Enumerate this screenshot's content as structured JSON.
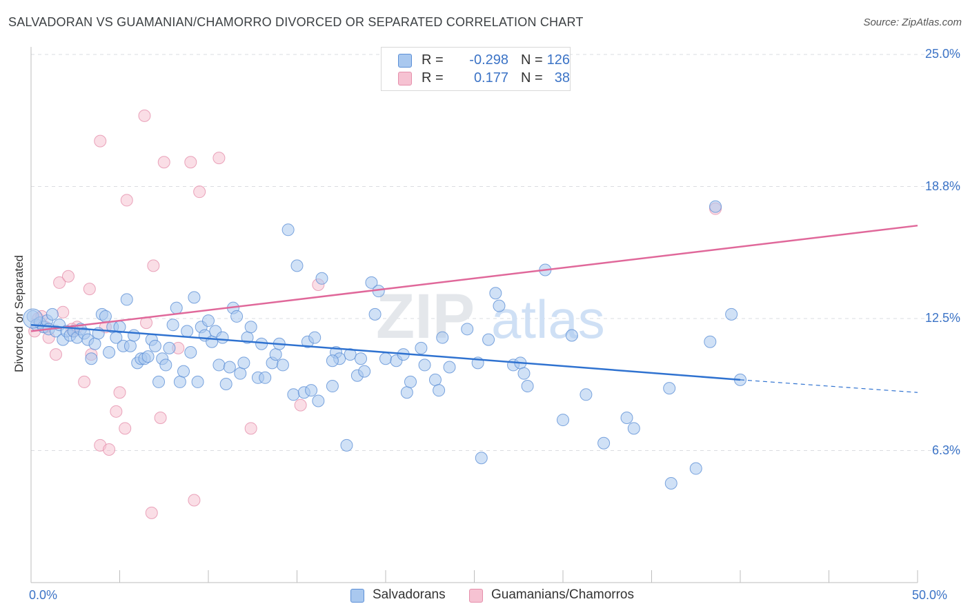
{
  "header": {
    "title": "SALVADORAN VS GUAMANIAN/CHAMORRO DIVORCED OR SEPARATED CORRELATION CHART",
    "source": "Source: ZipAtlas.com"
  },
  "legend": {
    "r_label": "R =",
    "n_label": "N =",
    "rows": [
      {
        "r": "-0.298",
        "n": "126",
        "color": "#a9c8ef"
      },
      {
        "r": "0.177",
        "n": "38",
        "color": "#f6b9cc"
      }
    ]
  },
  "watermark": {
    "zip": "ZIP",
    "atlas": "atlas"
  },
  "colors": {
    "blue_fill": "#a9c8ef",
    "blue_stroke": "#5b8fd6",
    "blue_line": "#2f72d0",
    "pink_fill": "#f6c2d2",
    "pink_stroke": "#e58fab",
    "pink_line": "#e0689a",
    "tick_text": "#3b73c6",
    "grid": "#dadce0"
  },
  "chart_data": {
    "type": "scatter",
    "title": "SALVADORAN VS GUAMANIAN/CHAMORRO DIVORCED OR SEPARATED CORRELATION CHART",
    "xlabel": "",
    "ylabel": "Divorced or Separated",
    "xlim": [
      0,
      50
    ],
    "ylim": [
      0,
      25
    ],
    "x_tick_labels": [
      "0.0%",
      "50.0%"
    ],
    "y_ticks": [
      6.25,
      12.5,
      18.75,
      25.0
    ],
    "y_tick_labels": [
      "6.3%",
      "12.5%",
      "18.8%",
      "25.0%"
    ],
    "grid": "horizontal dashed",
    "legend_position": "top-center and bottom",
    "series": [
      {
        "name": "Salvadorans",
        "r": -0.298,
        "n": 126,
        "trend": {
          "x0": 0,
          "y0": 12.2,
          "x1": 40,
          "y1": 9.6,
          "dashed_to_x": 50,
          "dashed_to_y": 9.0
        },
        "points": [
          [
            0.1,
            12.6
          ],
          [
            0.3,
            12.2
          ],
          [
            0.5,
            12.3
          ],
          [
            0.7,
            12.1
          ],
          [
            0.9,
            12.4
          ],
          [
            1.0,
            12.0
          ],
          [
            1.2,
            12.7
          ],
          [
            1.4,
            11.9
          ],
          [
            1.6,
            12.2
          ],
          [
            1.8,
            11.5
          ],
          [
            2.0,
            11.9
          ],
          [
            2.2,
            11.7
          ],
          [
            2.4,
            11.9
          ],
          [
            2.6,
            11.6
          ],
          [
            2.8,
            12.0
          ],
          [
            3.0,
            11.8
          ],
          [
            3.2,
            11.5
          ],
          [
            3.4,
            10.6
          ],
          [
            3.6,
            11.3
          ],
          [
            3.8,
            11.8
          ],
          [
            4.0,
            12.7
          ],
          [
            4.2,
            12.6
          ],
          [
            4.4,
            10.9
          ],
          [
            4.6,
            12.1
          ],
          [
            4.8,
            11.6
          ],
          [
            5.0,
            12.1
          ],
          [
            5.2,
            11.2
          ],
          [
            5.4,
            13.4
          ],
          [
            5.6,
            11.2
          ],
          [
            5.8,
            11.7
          ],
          [
            6.0,
            10.4
          ],
          [
            6.2,
            10.6
          ],
          [
            6.4,
            10.6
          ],
          [
            6.6,
            10.7
          ],
          [
            6.8,
            11.5
          ],
          [
            7.0,
            11.2
          ],
          [
            7.2,
            9.5
          ],
          [
            7.4,
            10.6
          ],
          [
            7.6,
            10.3
          ],
          [
            7.8,
            11.1
          ],
          [
            8.0,
            12.2
          ],
          [
            8.2,
            13.0
          ],
          [
            8.4,
            9.5
          ],
          [
            8.6,
            10.0
          ],
          [
            8.8,
            11.9
          ],
          [
            9.0,
            10.9
          ],
          [
            9.2,
            13.5
          ],
          [
            9.4,
            9.5
          ],
          [
            9.6,
            12.1
          ],
          [
            9.8,
            11.7
          ],
          [
            10.0,
            12.4
          ],
          [
            10.2,
            11.4
          ],
          [
            10.4,
            11.9
          ],
          [
            10.6,
            10.3
          ],
          [
            10.8,
            11.6
          ],
          [
            11.0,
            9.4
          ],
          [
            11.2,
            10.2
          ],
          [
            11.4,
            13.0
          ],
          [
            11.6,
            12.6
          ],
          [
            11.8,
            9.9
          ],
          [
            12.0,
            10.4
          ],
          [
            12.2,
            11.6
          ],
          [
            12.4,
            12.1
          ],
          [
            12.8,
            9.7
          ],
          [
            13.0,
            11.3
          ],
          [
            13.2,
            9.7
          ],
          [
            13.6,
            10.4
          ],
          [
            13.8,
            10.8
          ],
          [
            14.0,
            11.3
          ],
          [
            14.2,
            10.3
          ],
          [
            14.5,
            16.7
          ],
          [
            14.8,
            8.9
          ],
          [
            15.0,
            15.0
          ],
          [
            15.4,
            9.0
          ],
          [
            15.6,
            11.4
          ],
          [
            15.8,
            9.1
          ],
          [
            16.0,
            11.6
          ],
          [
            16.2,
            8.6
          ],
          [
            16.4,
            14.4
          ],
          [
            17.0,
            9.3
          ],
          [
            17.2,
            10.9
          ],
          [
            17.4,
            10.6
          ],
          [
            17.8,
            6.5
          ],
          [
            18.0,
            10.8
          ],
          [
            18.4,
            9.8
          ],
          [
            18.6,
            10.6
          ],
          [
            18.8,
            10.0
          ],
          [
            19.2,
            14.2
          ],
          [
            19.4,
            12.7
          ],
          [
            19.6,
            13.8
          ],
          [
            20.0,
            10.6
          ],
          [
            20.6,
            10.5
          ],
          [
            21.0,
            10.8
          ],
          [
            21.2,
            9.0
          ],
          [
            21.4,
            9.5
          ],
          [
            22.0,
            11.1
          ],
          [
            22.2,
            10.3
          ],
          [
            22.8,
            9.6
          ],
          [
            23.0,
            9.1
          ],
          [
            23.2,
            11.6
          ],
          [
            23.6,
            10.2
          ],
          [
            24.6,
            12.0
          ],
          [
            25.2,
            10.4
          ],
          [
            25.4,
            5.9
          ],
          [
            25.8,
            11.5
          ],
          [
            26.2,
            13.7
          ],
          [
            26.4,
            13.1
          ],
          [
            27.2,
            10.3
          ],
          [
            27.6,
            10.4
          ],
          [
            27.8,
            9.9
          ],
          [
            28.0,
            9.3
          ],
          [
            29.0,
            14.8
          ],
          [
            30.0,
            7.7
          ],
          [
            30.5,
            11.7
          ],
          [
            31.3,
            8.9
          ],
          [
            32.3,
            6.6
          ],
          [
            33.6,
            7.8
          ],
          [
            34.0,
            7.3
          ],
          [
            36.1,
            4.7
          ],
          [
            37.5,
            5.4
          ],
          [
            38.3,
            11.4
          ],
          [
            38.6,
            17.8
          ],
          [
            39.5,
            12.7
          ],
          [
            40.0,
            9.6
          ],
          [
            36.0,
            9.2
          ],
          [
            17.0,
            10.5
          ]
        ]
      },
      {
        "name": "Guamanians/Chamorros",
        "r": 0.177,
        "n": 38,
        "trend": {
          "x0": 0,
          "y0": 11.9,
          "x1": 50,
          "y1": 16.9
        },
        "points": [
          [
            0.2,
            11.9
          ],
          [
            0.4,
            12.5
          ],
          [
            0.6,
            12.6
          ],
          [
            0.8,
            12.1
          ],
          [
            1.0,
            11.6
          ],
          [
            1.4,
            10.8
          ],
          [
            1.6,
            14.2
          ],
          [
            1.8,
            12.8
          ],
          [
            2.1,
            14.5
          ],
          [
            2.4,
            11.9
          ],
          [
            2.6,
            12.1
          ],
          [
            3.0,
            9.5
          ],
          [
            3.3,
            13.9
          ],
          [
            3.4,
            10.8
          ],
          [
            3.9,
            6.5
          ],
          [
            4.2,
            12.1
          ],
          [
            4.4,
            6.3
          ],
          [
            4.8,
            8.1
          ],
          [
            5.0,
            9.0
          ],
          [
            5.3,
            7.3
          ],
          [
            5.4,
            18.1
          ],
          [
            6.4,
            22.1
          ],
          [
            6.5,
            12.3
          ],
          [
            6.8,
            3.3
          ],
          [
            6.9,
            15.0
          ],
          [
            7.3,
            7.8
          ],
          [
            7.5,
            19.9
          ],
          [
            8.3,
            11.1
          ],
          [
            9.0,
            19.9
          ],
          [
            9.2,
            3.9
          ],
          [
            9.5,
            18.5
          ],
          [
            10.6,
            20.1
          ],
          [
            12.4,
            7.3
          ],
          [
            15.2,
            8.4
          ],
          [
            16.2,
            14.1
          ],
          [
            38.6,
            17.7
          ],
          [
            3.9,
            20.9
          ],
          [
            2.3,
            12.0
          ]
        ]
      }
    ]
  },
  "bottom_legend": [
    {
      "label": "Salvadorans"
    },
    {
      "label": "Guamanians/Chamorros"
    }
  ]
}
